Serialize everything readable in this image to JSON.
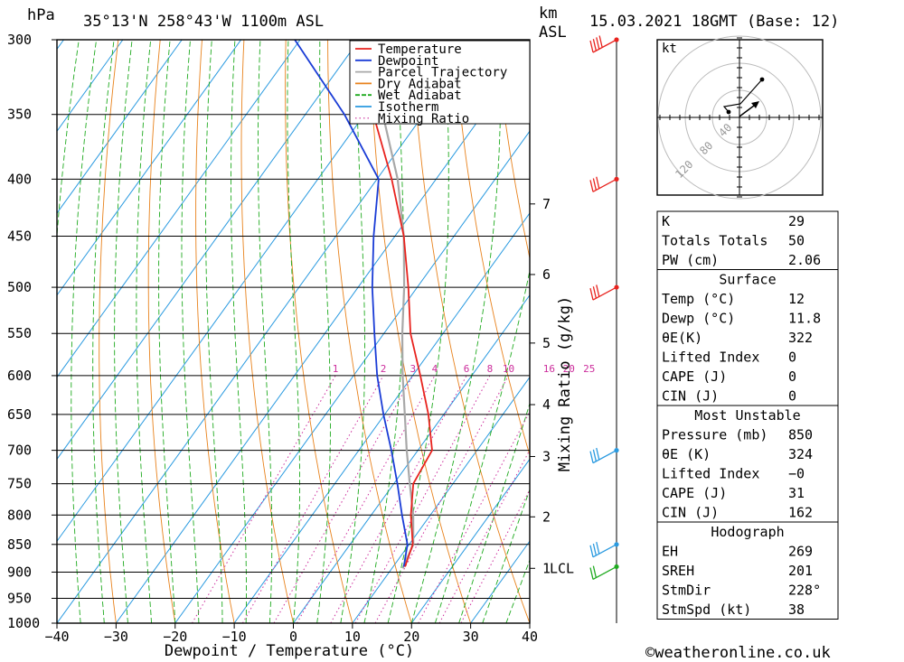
{
  "header": {
    "pressure_unit": "hPa",
    "location": "35°13'N  258°43'W  1100m  ASL",
    "km_label": "km",
    "asl_label": "ASL",
    "datetime": "15.03.2021  18GMT  (Base: 12)"
  },
  "chart_data": {
    "type": "skew-t",
    "title": "35°13'N  258°43'W  1100m  ASL",
    "xlabel": "Dewpoint / Temperature (°C)",
    "ylabel": "hPa",
    "y2label": "Mixing Ratio (g/kg)",
    "x_ticks": [
      -40,
      -30,
      -20,
      -10,
      0,
      10,
      20,
      30,
      40
    ],
    "x_tick_labels": [
      "−40",
      "−30",
      "−20",
      "−10",
      "0",
      "10",
      "20",
      "30",
      "40"
    ],
    "pressure_levels": [
      300,
      350,
      400,
      450,
      500,
      550,
      600,
      650,
      700,
      750,
      800,
      850,
      900,
      950,
      1000
    ],
    "xlim": [
      -40,
      40
    ],
    "ylim": [
      1000,
      300
    ],
    "km_ticks": [
      {
        "label": "7",
        "pressure": 421
      },
      {
        "label": "6",
        "pressure": 487
      },
      {
        "label": "5",
        "pressure": 561
      },
      {
        "label": "4",
        "pressure": 637
      },
      {
        "label": "3",
        "pressure": 709
      },
      {
        "label": "2",
        "pressure": 803
      },
      {
        "label": "1",
        "pressure": 893
      }
    ],
    "lcl": {
      "label": "LCL",
      "pressure": 893
    },
    "mixing_ratio_labels": [
      "1",
      "2",
      "3",
      "4",
      "6",
      "8",
      "10",
      "16",
      "20",
      "25"
    ],
    "mixing_ratio_values": [
      1,
      2,
      3,
      4,
      6,
      8,
      10,
      16,
      20,
      25
    ],
    "legend": [
      {
        "name": "Temperature",
        "color": "#e8231e"
      },
      {
        "name": "Dewpoint",
        "color": "#1a3cd6"
      },
      {
        "name": "Parcel Trajectory",
        "color": "#a8a8a8"
      },
      {
        "name": "Dry Adiabat",
        "color": "#e8821c"
      },
      {
        "name": "Wet Adiabat",
        "color": "#1faa1f"
      },
      {
        "name": "Isotherm",
        "color": "#2a9ae0"
      },
      {
        "name": "Mixing Ratio",
        "color": "#cc2d9c"
      }
    ],
    "temperature": {
      "pressure": [
        890,
        850,
        800,
        750,
        700,
        650,
        600,
        550,
        500,
        450,
        400,
        350,
        300
      ],
      "values": [
        12,
        10.6,
        6.7,
        3.3,
        2.4,
        -2.6,
        -8.7,
        -15.5,
        -21.5,
        -28.5,
        -37.5,
        -48.5,
        -60.5
      ]
    },
    "dewpoint": {
      "pressure": [
        890,
        850,
        800,
        750,
        700,
        650,
        600,
        550,
        500,
        450,
        400,
        350,
        300
      ],
      "values": [
        11.8,
        9.7,
        5.2,
        0.6,
        -4.5,
        -10.2,
        -16.0,
        -21.6,
        -27.6,
        -33.6,
        -39.7,
        -53.4,
        -70.9
      ]
    },
    "parcel": {
      "pressure": [
        893,
        850,
        800,
        750,
        700,
        650,
        600,
        550,
        500,
        450,
        400,
        350,
        300
      ],
      "values": [
        11.8,
        10.7,
        7.1,
        2.7,
        -1.9,
        -6.6,
        -11.7,
        -16.9,
        -22.2,
        -28.5,
        -36.5,
        -46.9,
        -60.4
      ]
    },
    "wind_barbs": [
      {
        "pressure": 300,
        "color": "#e8231e",
        "flags": 4
      },
      {
        "pressure": 400,
        "color": "#e8231e",
        "flags": 3
      },
      {
        "pressure": 500,
        "color": "#e8231e",
        "flags": 3
      },
      {
        "pressure": 700,
        "color": "#2a9ae0",
        "flags": 3
      },
      {
        "pressure": 850,
        "color": "#2a9ae0",
        "flags": 3
      },
      {
        "pressure": 890,
        "color": "#1faa1f",
        "flags": 2
      }
    ]
  },
  "hodograph": {
    "unit_label": "kt",
    "ring_labels": [
      "40",
      "80",
      "120"
    ]
  },
  "indices_table": {
    "rows": [
      {
        "label": "K",
        "value": "29"
      },
      {
        "label": "Totals Totals",
        "value": "50"
      },
      {
        "label": "PW (cm)",
        "value": "2.06"
      }
    ]
  },
  "surface_table": {
    "title": "Surface",
    "rows": [
      {
        "label": "Temp (°C)",
        "value": "12"
      },
      {
        "label": "Dewp (°C)",
        "value": "11.8"
      },
      {
        "label": "θE(K)",
        "value": "322"
      },
      {
        "label": "Lifted Index",
        "value": "0"
      },
      {
        "label": "CAPE (J)",
        "value": "0"
      },
      {
        "label": "CIN (J)",
        "value": "0"
      }
    ]
  },
  "unstable_table": {
    "title": "Most Unstable",
    "rows": [
      {
        "label": "Pressure (mb)",
        "value": "850"
      },
      {
        "label": "θE (K)",
        "value": "324"
      },
      {
        "label": "Lifted Index",
        "value": "−0"
      },
      {
        "label": "CAPE (J)",
        "value": "31"
      },
      {
        "label": "CIN (J)",
        "value": "162"
      }
    ]
  },
  "hodograph_table": {
    "title": "Hodograph",
    "rows": [
      {
        "label": "EH",
        "value": "269"
      },
      {
        "label": "SREH",
        "value": "201"
      },
      {
        "label": "StmDir",
        "value": "228°"
      },
      {
        "label": "StmSpd (kt)",
        "value": "38"
      }
    ]
  },
  "footer": {
    "copyright": "©weatheronline.co.uk"
  }
}
